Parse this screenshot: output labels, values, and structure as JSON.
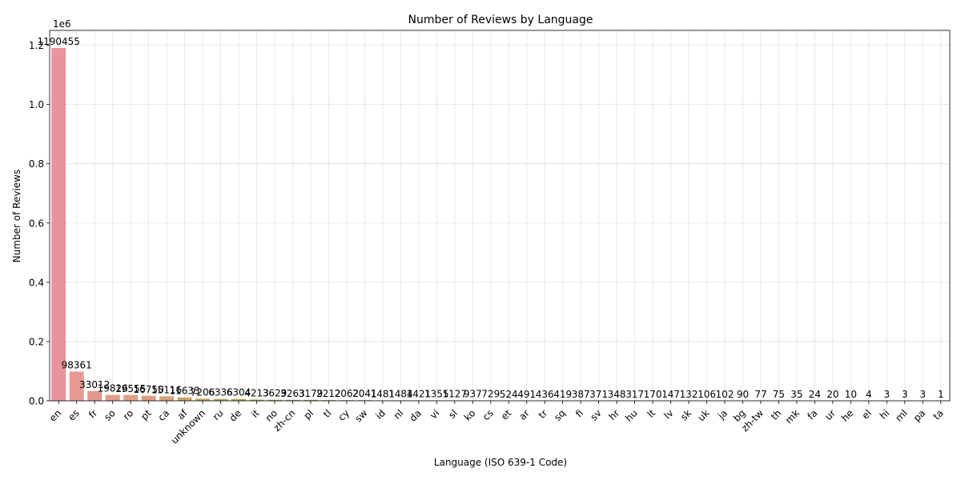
{
  "chart_data": {
    "type": "bar",
    "title": "Number of Reviews by Language",
    "xlabel": "Language (ISO 639-1 Code)",
    "ylabel": "Number of Reviews",
    "y_offset_label": "1e6",
    "ylim": [
      0,
      1250000
    ],
    "yticks": [
      0,
      200000,
      400000,
      600000,
      800000,
      1000000,
      1200000
    ],
    "ytick_labels": [
      "0.0",
      "0.2",
      "0.4",
      "0.6",
      "0.8",
      "1.0",
      "1.2"
    ],
    "grid": true,
    "categories": [
      "en",
      "es",
      "fr",
      "so",
      "ro",
      "pt",
      "ca",
      "af",
      "unknown",
      "ru",
      "de",
      "it",
      "no",
      "zh-cn",
      "pl",
      "tl",
      "cy",
      "sw",
      "id",
      "nl",
      "da",
      "vi",
      "sl",
      "ko",
      "cs",
      "et",
      "ar",
      "tr",
      "sq",
      "fi",
      "sv",
      "hr",
      "hu",
      "lt",
      "lv",
      "sk",
      "uk",
      "ja",
      "bg",
      "zh-tw",
      "th",
      "mk",
      "fa",
      "ur",
      "he",
      "el",
      "hi",
      "ml",
      "pa",
      "ta"
    ],
    "values": [
      1190455,
      98361,
      33012,
      19826,
      19555,
      16750,
      15116,
      11633,
      7206,
      6336,
      6304,
      4213,
      3629,
      3263,
      3179,
      2212,
      2062,
      2041,
      1481,
      1484,
      1421,
      1355,
      1127,
      937,
      729,
      524,
      491,
      436,
      419,
      387,
      371,
      348,
      317,
      170,
      147,
      132,
      106,
      102,
      90,
      77,
      75,
      35,
      24,
      20,
      10,
      4,
      3,
      3,
      3,
      1
    ],
    "data_labels": [
      "1190455",
      "98361",
      "33012",
      "19826",
      "19555",
      "16750",
      "15116",
      "11633",
      "7206",
      "6336",
      "6304",
      "4213",
      "3629",
      "3263",
      "3179",
      "2212",
      "2062",
      "2041",
      "1481",
      "1484",
      "1421",
      "1355",
      "1127",
      "937",
      "729",
      "524",
      "491",
      "436",
      "419",
      "387",
      "371",
      "348",
      "317",
      "170",
      "147",
      "132",
      "106",
      "102",
      "90",
      "77",
      "75",
      "35",
      "24",
      "20",
      "10",
      "4",
      "3",
      "3",
      "3",
      "1"
    ],
    "colors": [
      "#e8949b",
      "#e99993",
      "#e4988e",
      "#e49e8a",
      "#e19e85",
      "#dc9e7e",
      "#d7a277",
      "#cca669",
      "#c4a863",
      "#bca65e",
      "#b3a95c",
      "#aaaa5a",
      "#a5ab5c",
      "#9bae5e",
      "#93af62",
      "#8bb066",
      "#83b26c",
      "#7ab373",
      "#73b47b",
      "#6cb482",
      "#67b48b",
      "#62b394",
      "#5fb29c",
      "#5cb1a4",
      "#5ab0ab",
      "#5aafb2",
      "#5baeb9",
      "#5cadbf",
      "#5eacc4",
      "#61abca",
      "#65a9cf",
      "#6aa7d4",
      "#70a5d8",
      "#78a2dc",
      "#809fdf",
      "#8a9be1",
      "#9498e3",
      "#9e94e3",
      "#a891e3",
      "#b28ee1",
      "#bc8cde",
      "#c48ada",
      "#cc89d5",
      "#d389cf",
      "#d98ac8",
      "#dd8cc1",
      "#e08eb9",
      "#e290b1",
      "#e492aa",
      "#e694a3"
    ]
  }
}
